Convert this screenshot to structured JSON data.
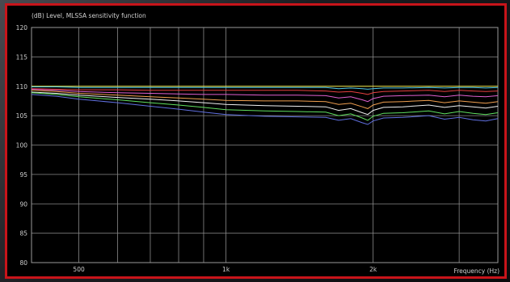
{
  "chart_data": {
    "type": "line",
    "title": "(dB)  Level, MLSSA sensitivity function",
    "xlabel": "Frequency  (Hz)",
    "ylabel": "",
    "x_scale": "log",
    "xlim": [
      400,
      3600
    ],
    "ylim": [
      80,
      120
    ],
    "y_ticks": [
      80,
      85,
      90,
      95,
      100,
      105,
      110,
      115,
      120
    ],
    "x_ticks": [
      {
        "value": 500,
        "label": "500"
      },
      {
        "value": 1000,
        "label": "1k"
      },
      {
        "value": 2000,
        "label": "2k"
      }
    ],
    "x_grid": [
      400,
      500,
      600,
      700,
      800,
      900,
      1000,
      2000,
      3000
    ],
    "grid": true,
    "x": [
      400,
      450,
      500,
      600,
      700,
      800,
      900,
      1000,
      1200,
      1400,
      1600,
      1700,
      1800,
      1900,
      1950,
      2000,
      2100,
      2300,
      2600,
      2800,
      3000,
      3200,
      3400,
      3600
    ],
    "series": [
      {
        "color": "#e8e040",
        "values": [
          110.0,
          110.0,
          110.0,
          110.0,
          110.0,
          110.0,
          110.0,
          110.0,
          110.0,
          110.0,
          110.0,
          110.0,
          110.0,
          110.0,
          110.0,
          110.0,
          110.0,
          110.0,
          110.0,
          110.0,
          110.0,
          110.0,
          110.0,
          110.0
        ]
      },
      {
        "color": "#50c8e8",
        "values": [
          109.9,
          109.9,
          109.8,
          109.8,
          109.8,
          109.8,
          109.8,
          109.8,
          109.8,
          109.8,
          109.8,
          109.6,
          109.7,
          109.6,
          109.5,
          109.6,
          109.7,
          109.7,
          109.8,
          109.7,
          109.8,
          109.8,
          109.7,
          109.8
        ]
      },
      {
        "color": "#e84040",
        "values": [
          109.6,
          109.5,
          109.4,
          109.4,
          109.3,
          109.3,
          109.3,
          109.3,
          109.3,
          109.3,
          109.2,
          109.0,
          109.1,
          108.8,
          108.6,
          108.9,
          109.1,
          109.2,
          109.3,
          109.1,
          109.3,
          109.2,
          109.1,
          109.2
        ]
      },
      {
        "color": "#e060d0",
        "values": [
          109.5,
          109.3,
          109.1,
          108.9,
          108.8,
          108.7,
          108.6,
          108.6,
          108.5,
          108.5,
          108.4,
          108.0,
          108.2,
          107.7,
          107.4,
          107.9,
          108.3,
          108.4,
          108.5,
          108.2,
          108.5,
          108.3,
          108.2,
          108.4
        ]
      },
      {
        "color": "#f0a050",
        "values": [
          109.3,
          109.1,
          108.8,
          108.5,
          108.2,
          108.0,
          107.8,
          107.6,
          107.5,
          107.5,
          107.4,
          106.9,
          107.1,
          106.5,
          106.2,
          106.8,
          107.3,
          107.4,
          107.6,
          107.2,
          107.5,
          107.3,
          107.1,
          107.4
        ]
      },
      {
        "color": "#f0f0f0",
        "values": [
          109.0,
          108.8,
          108.5,
          108.1,
          107.8,
          107.5,
          107.2,
          106.9,
          106.7,
          106.6,
          106.5,
          105.9,
          106.2,
          105.5,
          105.2,
          105.9,
          106.4,
          106.5,
          106.8,
          106.4,
          106.7,
          106.5,
          106.3,
          106.6
        ]
      },
      {
        "color": "#60e060",
        "values": [
          108.9,
          108.6,
          108.2,
          107.7,
          107.2,
          106.8,
          106.4,
          106.0,
          105.8,
          105.7,
          105.6,
          105.0,
          105.3,
          104.6,
          104.2,
          104.9,
          105.4,
          105.5,
          105.8,
          105.3,
          105.7,
          105.4,
          105.2,
          105.5
        ]
      },
      {
        "color": "#6070e0",
        "values": [
          108.6,
          108.3,
          107.8,
          107.2,
          106.6,
          106.1,
          105.6,
          105.2,
          104.9,
          104.8,
          104.7,
          104.2,
          104.5,
          103.8,
          103.5,
          104.1,
          104.6,
          104.7,
          105.0,
          104.4,
          104.7,
          104.3,
          104.1,
          104.5
        ]
      }
    ]
  }
}
